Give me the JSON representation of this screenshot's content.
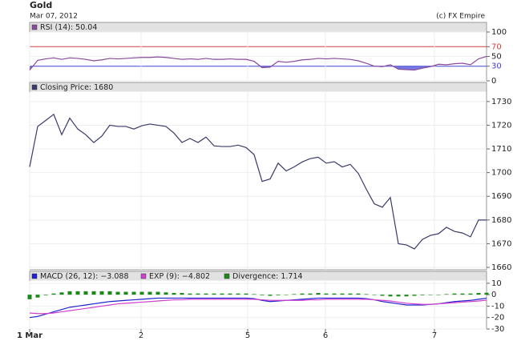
{
  "header": {
    "title": "Gold",
    "date": "Mar 07, 2012",
    "credit": "(c) FX Empire"
  },
  "chart_data": [
    {
      "type": "line",
      "x": [
        0,
        1,
        2,
        3,
        4,
        5,
        6,
        7,
        8,
        9,
        10,
        11,
        12,
        13,
        14,
        15,
        16,
        17,
        18,
        19,
        20,
        21,
        22,
        23,
        24,
        25,
        26,
        27,
        28,
        29,
        30,
        31,
        32,
        33,
        34,
        35,
        36,
        37,
        38,
        39,
        40,
        41,
        42,
        43,
        44,
        45,
        46,
        47,
        48,
        49,
        50,
        51,
        52,
        53,
        54,
        55,
        56,
        57
      ],
      "xlim": [
        0,
        57
      ],
      "series": [
        {
          "name": "RSI (14): 50.04",
          "color": "#8a4a9a",
          "values": [
            22,
            42,
            45,
            47,
            44,
            47,
            46,
            44,
            41,
            43,
            46,
            45,
            46,
            47,
            48,
            48,
            49,
            48,
            46,
            44,
            45,
            44,
            46,
            44,
            44,
            45,
            44,
            44,
            40,
            27,
            28,
            40,
            38,
            40,
            43,
            44,
            46,
            45,
            46,
            45,
            44,
            41,
            36,
            30,
            29,
            33,
            24,
            23,
            22,
            26,
            29,
            34,
            33,
            35,
            36,
            33,
            45,
            50.04
          ]
        }
      ],
      "ylim": [
        0,
        100
      ],
      "yticks": [
        0,
        50,
        100
      ],
      "levels": [
        {
          "value": 70,
          "color": "#d04040"
        },
        {
          "value": 30,
          "color": "#4040d0"
        }
      ],
      "fill_below": "#6060e0",
      "grid": true
    },
    {
      "type": "line",
      "x": [
        0,
        1,
        2,
        3,
        4,
        5,
        6,
        7,
        8,
        9,
        10,
        11,
        12,
        13,
        14,
        15,
        16,
        17,
        18,
        19,
        20,
        21,
        22,
        23,
        24,
        25,
        26,
        27,
        28,
        29,
        30,
        31,
        32,
        33,
        34,
        35,
        36,
        37,
        38,
        39,
        40,
        41,
        42,
        43,
        44,
        45,
        46,
        47,
        48,
        49,
        50,
        51,
        52,
        53,
        54,
        55,
        56,
        57
      ],
      "xlim": [
        0,
        57
      ],
      "series": [
        {
          "name": "Closing Price: 1680",
          "color": "#3a3a6a",
          "values": [
            1702.4,
            1719.5,
            1722,
            1724.6,
            1716,
            1723,
            1718.4,
            1716,
            1712.7,
            1715.4,
            1720,
            1719.5,
            1719.5,
            1718.4,
            1719.8,
            1720.5,
            1720,
            1719.5,
            1716.7,
            1712.7,
            1714.4,
            1712.7,
            1715,
            1711.3,
            1711,
            1711,
            1711.6,
            1710.6,
            1707.6,
            1696.3,
            1697.3,
            1704,
            1700.7,
            1702.4,
            1704.5,
            1705.9,
            1706.5,
            1704,
            1704.6,
            1702.4,
            1703.5,
            1699.7,
            1693,
            1686.8,
            1685.4,
            1689.5,
            1670,
            1669.5,
            1667.8,
            1671.8,
            1673.5,
            1674.2,
            1676.9,
            1675.2,
            1674.5,
            1672.9,
            1680,
            1680
          ]
        }
      ],
      "ylim": [
        1659,
        1734
      ],
      "yticks": [
        1660,
        1670,
        1680,
        1690,
        1700,
        1710,
        1720,
        1730
      ],
      "grid": true
    },
    {
      "type": "line",
      "x": [
        0,
        1,
        2,
        3,
        4,
        5,
        6,
        7,
        8,
        9,
        10,
        11,
        12,
        13,
        14,
        15,
        16,
        17,
        18,
        19,
        20,
        21,
        22,
        23,
        24,
        25,
        26,
        27,
        28,
        29,
        30,
        31,
        32,
        33,
        34,
        35,
        36,
        37,
        38,
        39,
        40,
        41,
        42,
        43,
        44,
        45,
        46,
        47,
        48,
        49,
        50,
        51,
        52,
        53,
        54,
        55,
        56,
        57
      ],
      "xlim": [
        0,
        57
      ],
      "series": [
        {
          "name": "MACD (26, 12): −3.088",
          "color": "#2020d0",
          "values": [
            -20,
            -19,
            -17,
            -15,
            -13,
            -11,
            -10,
            -9,
            -8,
            -7,
            -6,
            -5.5,
            -5,
            -4.5,
            -4,
            -3.5,
            -3,
            -3,
            -3,
            -3,
            -3,
            -3,
            -3,
            -3,
            -3,
            -3,
            -3,
            -3,
            -3.5,
            -5,
            -6,
            -5.5,
            -5,
            -4.5,
            -4,
            -3.5,
            -3,
            -3,
            -3,
            -3,
            -3,
            -3,
            -3.5,
            -4.5,
            -6,
            -7,
            -8,
            -9,
            -9,
            -9,
            -8.5,
            -8,
            -7,
            -6,
            -5.5,
            -5,
            -4,
            -3.088
          ]
        },
        {
          "name": "EXP (9): −4.802",
          "color": "#d040d0",
          "values": [
            -16,
            -16.5,
            -16.5,
            -16,
            -15,
            -14,
            -13,
            -12,
            -11,
            -10,
            -9,
            -8,
            -7.5,
            -7,
            -6.5,
            -6,
            -5.5,
            -5,
            -4.5,
            -4.5,
            -4,
            -4,
            -4,
            -4,
            -4,
            -4,
            -4,
            -4,
            -4,
            -4.5,
            -5,
            -5,
            -5,
            -5,
            -5,
            -4.5,
            -4.5,
            -4,
            -4,
            -4,
            -4,
            -4,
            -4,
            -4.5,
            -5,
            -5.5,
            -6.5,
            -7.5,
            -8,
            -8.5,
            -8.5,
            -8,
            -7.5,
            -7,
            -6.5,
            -6,
            -5.5,
            -4.802
          ]
        },
        {
          "name": "Divergence: 1.714",
          "color": "#1a8a1a",
          "kind": "bar",
          "values": [
            -4,
            -2.5,
            -0.5,
            1,
            2,
            3,
            3,
            3,
            3,
            3,
            3,
            2.5,
            2.5,
            2.5,
            2.5,
            2.5,
            2.5,
            2,
            1.5,
            1.5,
            1,
            1,
            1,
            1,
            1,
            1,
            1,
            1,
            0.5,
            -0.5,
            -1,
            -0.5,
            0,
            0.5,
            1,
            1,
            1.5,
            1,
            1,
            1,
            1,
            1,
            0.5,
            0,
            -1,
            -1.5,
            -1.5,
            -1.5,
            -1,
            -0.5,
            0,
            0,
            0.5,
            1,
            1,
            1,
            1.5,
            1.714
          ]
        }
      ],
      "ylim": [
        -30,
        12
      ],
      "yticks": [
        -30,
        -20,
        -10,
        0,
        10
      ],
      "grid": true,
      "xticks": [
        {
          "value": 0,
          "label": "1 Mar"
        },
        {
          "value": 13.9,
          "label": "2"
        },
        {
          "value": 27.2,
          "label": "5"
        },
        {
          "value": 36.9,
          "label": "6"
        },
        {
          "value": 50.5,
          "label": "7"
        }
      ]
    }
  ]
}
